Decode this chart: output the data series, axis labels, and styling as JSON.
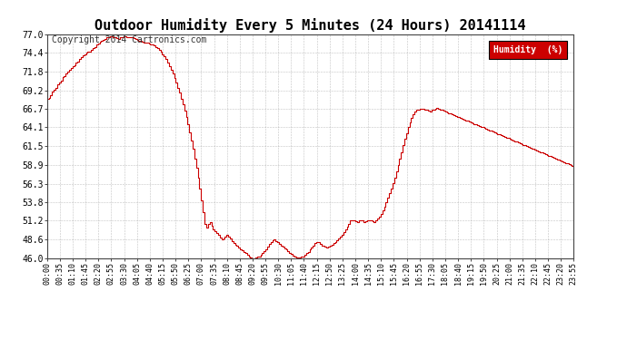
{
  "title": "Outdoor Humidity Every 5 Minutes (24 Hours) 20141114",
  "copyright": "Copyright 2014 Cartronics.com",
  "legend_label": "Humidity  (%)",
  "line_color": "#cc0000",
  "legend_bg": "#cc0000",
  "legend_text_color": "#ffffff",
  "bg_color": "#ffffff",
  "grid_color": "#999999",
  "ylim": [
    46.0,
    77.0
  ],
  "yticks": [
    46.0,
    48.6,
    51.2,
    53.8,
    56.3,
    58.9,
    61.5,
    64.1,
    66.7,
    69.2,
    71.8,
    74.4,
    77.0
  ],
  "title_fontsize": 11,
  "copyright_fontsize": 7,
  "humidity_values": [
    68.0,
    68.2,
    68.5,
    69.0,
    69.3,
    69.5,
    70.0,
    70.3,
    70.6,
    71.0,
    71.2,
    71.5,
    71.8,
    72.0,
    72.3,
    72.5,
    72.7,
    73.0,
    73.2,
    73.5,
    73.8,
    74.0,
    74.2,
    74.4,
    74.5,
    74.6,
    74.8,
    75.0,
    75.2,
    75.5,
    75.7,
    75.9,
    76.0,
    76.2,
    76.3,
    76.5,
    76.6,
    76.7,
    76.7,
    76.6,
    76.5,
    76.4,
    76.3,
    76.5,
    76.6,
    76.7,
    76.7,
    76.6,
    76.5,
    76.5,
    76.5,
    76.4,
    76.3,
    76.2,
    76.1,
    76.0,
    75.9,
    75.8,
    75.8,
    75.8,
    75.7,
    75.6,
    75.5,
    75.4,
    75.2,
    75.0,
    74.8,
    74.5,
    74.2,
    73.9,
    73.5,
    73.1,
    72.6,
    72.1,
    71.5,
    70.9,
    70.3,
    69.6,
    68.9,
    68.1,
    67.3,
    66.4,
    65.5,
    64.5,
    63.4,
    62.3,
    61.1,
    59.8,
    58.5,
    57.1,
    55.6,
    54.0,
    52.4,
    50.8,
    50.3,
    50.8,
    51.0,
    50.5,
    50.0,
    49.8,
    49.5,
    49.2,
    48.9,
    48.6,
    48.7,
    49.0,
    49.3,
    49.0,
    48.7,
    48.4,
    48.1,
    47.9,
    47.7,
    47.5,
    47.3,
    47.1,
    46.9,
    46.7,
    46.5,
    46.3,
    46.1,
    46.0,
    46.0,
    46.1,
    46.2,
    46.3,
    46.5,
    46.7,
    47.0,
    47.3,
    47.6,
    48.0,
    48.3,
    48.5,
    48.6,
    48.4,
    48.2,
    48.0,
    47.8,
    47.6,
    47.4,
    47.2,
    47.0,
    46.8,
    46.6,
    46.4,
    46.2,
    46.1,
    46.0,
    46.1,
    46.2,
    46.3,
    46.5,
    46.7,
    46.9,
    47.2,
    47.5,
    47.8,
    48.1,
    48.3,
    48.2,
    48.0,
    47.8,
    47.7,
    47.6,
    47.5,
    47.6,
    47.7,
    47.9,
    48.1,
    48.3,
    48.5,
    48.7,
    49.0,
    49.3,
    49.6,
    50.0,
    50.4,
    50.8,
    51.2,
    51.3,
    51.2,
    51.1,
    51.0,
    51.2,
    51.3,
    51.2,
    51.0,
    51.1,
    51.2,
    51.3,
    51.2,
    51.1,
    51.0,
    51.2,
    51.5,
    51.8,
    52.2,
    52.7,
    53.2,
    53.8,
    54.4,
    55.0,
    55.7,
    56.4,
    57.2,
    58.0,
    58.9,
    59.8,
    60.7,
    61.6,
    62.5,
    63.3,
    64.1,
    64.8,
    65.4,
    65.9,
    66.3,
    66.5,
    66.6,
    66.7,
    66.7,
    66.7,
    66.6,
    66.5,
    66.4,
    66.3,
    66.5,
    66.6,
    66.7,
    66.8,
    66.7,
    66.6,
    66.5,
    66.4,
    66.3,
    66.2,
    66.1,
    66.0,
    65.9,
    65.8,
    65.7,
    65.6,
    65.5,
    65.4,
    65.3,
    65.2,
    65.1,
    65.0,
    64.9,
    64.8,
    64.7,
    64.6,
    64.5,
    64.4,
    64.3,
    64.2,
    64.1,
    64.0,
    63.9,
    63.8,
    63.7,
    63.6,
    63.5,
    63.4,
    63.3,
    63.2,
    63.1,
    63.0,
    62.9,
    62.8,
    62.7,
    62.6,
    62.5,
    62.4,
    62.3,
    62.2,
    62.1,
    62.0,
    61.9,
    61.8,
    61.7,
    61.6,
    61.5,
    61.4,
    61.3,
    61.2,
    61.1,
    61.0,
    60.9,
    60.8,
    60.7,
    60.6,
    60.5,
    60.4,
    60.3,
    60.2,
    60.1,
    60.0,
    59.9,
    59.8,
    59.7,
    59.6,
    59.5,
    59.4,
    59.3,
    59.2,
    59.1,
    59.0,
    58.9,
    58.8,
    58.7
  ],
  "xtick_labels": [
    "00:00",
    "00:35",
    "01:10",
    "01:45",
    "02:20",
    "02:55",
    "03:30",
    "04:05",
    "04:40",
    "05:15",
    "05:50",
    "06:25",
    "07:00",
    "07:35",
    "08:10",
    "08:45",
    "09:20",
    "09:55",
    "10:30",
    "11:05",
    "11:40",
    "12:15",
    "12:50",
    "13:25",
    "14:00",
    "14:35",
    "15:10",
    "15:45",
    "16:20",
    "16:55",
    "17:30",
    "18:05",
    "18:40",
    "19:15",
    "19:50",
    "20:25",
    "21:00",
    "21:35",
    "22:10",
    "22:45",
    "23:20",
    "23:55"
  ]
}
